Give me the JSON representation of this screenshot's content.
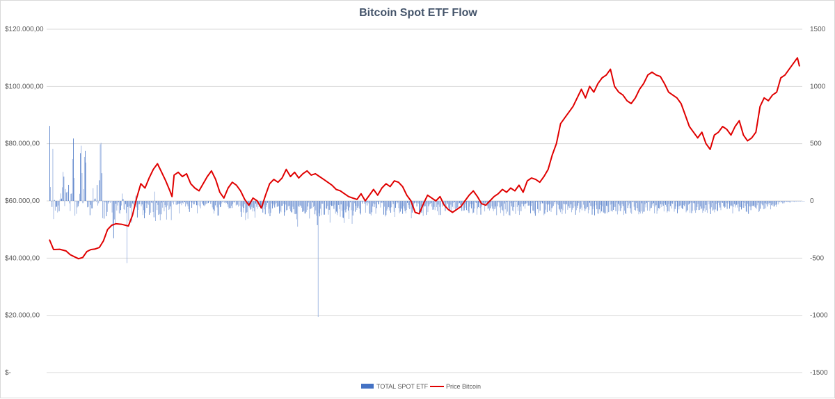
{
  "chart_data": {
    "type": "bar+line",
    "title": "Bitcoin Spot ETF Flow",
    "y_left": {
      "ticks": [
        "$120.000,00",
        "$100.000,00",
        "$80.000,00",
        "$60.000,00",
        "$40.000,00",
        "$20.000,00",
        "$-"
      ],
      "range": [
        0,
        120000
      ]
    },
    "y_right": {
      "ticks": [
        "1500",
        "1000",
        "500",
        "0",
        "-500",
        "-1000",
        "-1500"
      ],
      "range": [
        -1500,
        1500
      ]
    },
    "grid": true,
    "legend_position": "bottom",
    "series": [
      {
        "name": "TOTAL SPOT ETF",
        "kind": "bar",
        "axis": "right",
        "color": "#4472c4",
        "values": [
          655,
          121,
          -1,
          -53,
          455,
          -159,
          8,
          -85,
          -52,
          -51,
          -101,
          -40,
          -90,
          16,
          65,
          20,
          119,
          253,
          212,
          -45,
          104,
          74,
          -1,
          80,
          140,
          -21,
          -88,
          62,
          66,
          365,
          545,
          200,
          -130,
          -1,
          -113,
          -57,
          -47,
          -22,
          62,
          417,
          482,
          243,
          -20,
          103,
          383,
          438,
          335,
          -3,
          -56,
          -52,
          -8,
          -125,
          -35,
          -65,
          -65,
          111,
          -11,
          19,
          20,
          -8,
          139,
          -41,
          -21,
          180,
          495,
          507,
          242,
          -151,
          -3,
          -155,
          -8,
          -14,
          -134,
          -96,
          -25,
          -14,
          -4,
          -18,
          -1,
          -101,
          -222,
          -326,
          -162,
          -201,
          -24,
          -84,
          -40,
          -13,
          -108,
          -112,
          -80,
          -40,
          64,
          18,
          -73,
          -79,
          -28,
          -106,
          -543,
          -54,
          -174,
          -47,
          -61,
          -50,
          -190,
          -22,
          -31,
          -50,
          -53,
          46,
          -57,
          -145,
          -79,
          -30,
          -28,
          -5,
          -47,
          -31,
          -123,
          -81,
          -152,
          -104,
          -20,
          -61,
          -23,
          -34,
          -121,
          -1,
          -103,
          -15,
          -20,
          -97,
          -143,
          81,
          -176,
          -17,
          -80,
          -35,
          -122,
          -114,
          -170,
          -117,
          -15,
          -59,
          -10,
          -91,
          -36,
          -56,
          -163,
          -40,
          -6,
          -79,
          -71,
          -48,
          -168,
          -16,
          -2,
          -31,
          -6,
          -3,
          -33,
          -37,
          -29,
          -24,
          -110,
          -25,
          -21,
          -38,
          -16,
          -24,
          -7,
          -12,
          -49,
          -15,
          -30,
          -47,
          -72,
          -96,
          -4,
          -14,
          -60,
          -15,
          -31,
          -30,
          -5,
          -13,
          -38,
          -109,
          -38,
          -2,
          -48,
          -65,
          -3,
          -28,
          -22,
          -39,
          -46,
          -38,
          -25,
          -3,
          -21,
          -19,
          -4,
          -6,
          -25,
          -8,
          -57,
          -75,
          -111,
          -87,
          -39,
          -12,
          -57,
          -129,
          -128,
          -33,
          -55,
          -51,
          -22,
          -7,
          -5,
          -18,
          -6,
          -21,
          -17,
          -29,
          -53,
          -67,
          -62,
          -63,
          -42,
          -62,
          -28,
          -11,
          -14,
          -4,
          -41,
          -34,
          -33,
          -50,
          -4,
          -41,
          -96,
          -139,
          -50,
          -101,
          -61,
          -29,
          -168,
          -105,
          -97,
          -156,
          -43,
          -57,
          -79,
          -71,
          -53,
          -92,
          -60,
          -92,
          -147,
          -23,
          -52,
          -70,
          -32,
          -54,
          -39,
          -63,
          -52,
          -31,
          -102,
          -41,
          -74,
          -117,
          -36,
          -53,
          -17,
          -110,
          -68,
          -134,
          -104,
          -22,
          -65,
          -24,
          -40,
          -58,
          -30,
          -18,
          -53,
          -43,
          -48,
          -111,
          -88,
          -99,
          -43,
          -41,
          -25,
          -130,
          -99,
          -32,
          -82,
          -78,
          -49,
          -42,
          -70,
          -90,
          -100,
          -100,
          -51,
          -73,
          -114,
          -116,
          -113,
          -161,
          -225,
          -46,
          -54,
          -38,
          -45,
          -60,
          -97,
          -94,
          -87,
          -110,
          -110,
          -96,
          -79,
          -49,
          -15,
          -154,
          -71,
          -67,
          -62,
          -14,
          -53,
          -43,
          -117,
          -83,
          -130,
          -212,
          -1014,
          -108,
          -135,
          -68,
          -125,
          -24,
          -24,
          -120,
          -120,
          -3,
          -65,
          -69,
          -44,
          -120,
          -78,
          -190,
          -35,
          -44,
          -42,
          -44,
          -70,
          -33,
          -112,
          -94,
          -124,
          -105,
          -36,
          -72,
          -138,
          -30,
          -87,
          -145,
          -149,
          -193,
          -81,
          -100,
          -73,
          -47,
          -84,
          -158,
          -57,
          -13,
          -81,
          -200,
          -128,
          -86,
          -20,
          -95,
          -42,
          -79,
          -60,
          -47,
          -68,
          -110,
          -120,
          -6,
          -23,
          -8,
          -4,
          -24,
          -103,
          -15,
          -40,
          -12,
          -21,
          -112,
          -114,
          -127,
          -99,
          -49,
          -22,
          -54,
          -28,
          -112,
          -63,
          -11,
          -28,
          -30,
          -5,
          -58,
          -16,
          -20,
          -12,
          -120,
          -51,
          -136,
          -124,
          -84,
          -69,
          -55,
          -84,
          -59,
          -103,
          -56,
          -8,
          -26,
          -96,
          -140,
          -60,
          -10,
          -28,
          -15,
          -63,
          -108,
          -94,
          -63,
          -73,
          -113,
          -47,
          -66,
          -89,
          -109,
          -79,
          -17,
          -59,
          -37,
          -72,
          -12,
          -152,
          -102,
          -38,
          -48,
          -21,
          -13,
          -18,
          -49,
          -16,
          -23,
          -98,
          -92,
          -96,
          -103,
          -17,
          -131,
          -51,
          -42,
          -46,
          -122,
          -22,
          -98,
          -47,
          -31,
          -25,
          -18,
          -50,
          -78,
          -76,
          -53,
          -81,
          -8,
          -55,
          -90,
          -32,
          -123,
          -53,
          -123,
          -1,
          -52,
          -15,
          -26,
          -16,
          -89,
          -55,
          -14,
          -26,
          -59,
          -73,
          -91,
          -33,
          -100,
          -52,
          -16,
          -68,
          -10,
          -90,
          -63,
          -64,
          -55,
          -23,
          -19,
          -36,
          -62,
          -87,
          -30,
          -86,
          -83,
          -59,
          -28,
          -80,
          -13,
          -90,
          -105,
          -51,
          -26,
          -65,
          -29,
          -110,
          -102,
          -66,
          -12,
          -18,
          -120,
          -66,
          -55,
          -19,
          -61,
          -120,
          -50,
          -20,
          -31,
          -9,
          -92,
          -22,
          -13,
          -44,
          -70,
          -61,
          -84,
          -64,
          -11,
          -48,
          -68,
          -90,
          -73,
          -49,
          -68,
          -125,
          -47,
          -12,
          -14,
          -57,
          -106,
          -47,
          -78,
          -89,
          -131,
          -23,
          -74,
          -112,
          -12,
          -94,
          -1,
          -124,
          -129,
          -20,
          -48,
          -84,
          -91,
          -54,
          -11,
          -114,
          -7,
          -54,
          -86,
          -38,
          -122,
          -51,
          -90,
          -25,
          -26,
          -47,
          -30,
          -67,
          -24,
          -21,
          -15,
          -42,
          -38,
          -44,
          -108,
          -44,
          -18,
          -84,
          -89,
          -109,
          -130,
          -10,
          -8,
          -72,
          -105,
          -9,
          -85,
          -26,
          -12,
          -21,
          -22,
          -125,
          -112,
          -77,
          -26,
          -98,
          -34,
          -29,
          -85,
          -29,
          -97,
          -63,
          -51,
          -43,
          -9,
          -29,
          -9,
          -124,
          -26,
          -37,
          -70,
          -82,
          -99,
          -71,
          -116,
          -82,
          -25,
          -30,
          -112,
          -31,
          -27,
          -78,
          -47,
          -62,
          -60,
          -30,
          -99,
          -77,
          -60,
          -12,
          -47,
          -121,
          -81,
          -61,
          -41,
          -19,
          -101,
          -72,
          -58,
          -82,
          -3,
          -33,
          -64,
          -88,
          -72,
          -64,
          -54,
          -109,
          -78,
          -16,
          -44,
          -46,
          -120,
          -73,
          -48,
          -126,
          -6,
          -38,
          -72,
          -110,
          -114,
          -74,
          -106,
          -35,
          -92,
          -47,
          -100,
          -103,
          -115,
          -107,
          -42,
          -108,
          -47,
          -98,
          -4,
          -33,
          -88,
          -26,
          -93,
          -79,
          -55,
          -53,
          -90,
          -14,
          -118,
          -26,
          -88,
          -40,
          -89,
          -62,
          -27,
          -45,
          -122,
          -85,
          -109,
          -115,
          -10,
          -62,
          -39,
          -22,
          -64,
          -102,
          -113,
          -9,
          -10,
          -51,
          -79,
          -86,
          -18,
          -62,
          -87,
          -117,
          -96,
          -110,
          -92,
          -21,
          -111,
          -95,
          -94,
          -29,
          -57,
          -18,
          -85,
          -10,
          -7,
          -87,
          -66,
          -60,
          -30,
          -45,
          -20,
          -109,
          -50,
          -38,
          -113,
          -85,
          -62,
          -70,
          -61,
          -28,
          -55,
          -30,
          -42,
          -92,
          -20,
          -35,
          -51,
          -102,
          -90,
          -26,
          -93,
          -45,
          -21,
          -66,
          -24,
          -3,
          -94,
          -71,
          -48,
          -8,
          -108,
          -49,
          -74,
          -44,
          -38,
          -60,
          -68,
          -71,
          -37,
          -45,
          -28,
          -100,
          -87,
          -79,
          -33,
          -24,
          -105,
          -16,
          -107,
          -87,
          -19,
          -21,
          -83,
          -104,
          -80,
          -54,
          -25,
          -80,
          -79,
          -48,
          -72,
          -64,
          -104,
          -85,
          -65,
          -95,
          -36,
          -80,
          -105,
          -3,
          -29,
          -70,
          -115,
          -56,
          -17,
          -84,
          -76,
          -100,
          -75,
          -25,
          -83,
          -89,
          -16,
          -38,
          -58,
          -81,
          -14,
          -18,
          -50,
          -44,
          -59,
          -53,
          -19,
          -70,
          -22,
          -5,
          -67,
          -45,
          -36,
          -45,
          -110,
          -53,
          -28,
          -58,
          -40,
          -34,
          -58,
          -25,
          -92,
          -53,
          -55,
          -75,
          -59,
          -10,
          -60,
          -18,
          -44,
          -93,
          -98,
          -24,
          -113,
          -45,
          -50,
          -81,
          -47,
          -43,
          -45,
          -39,
          -52,
          -59,
          -70,
          -38,
          -16,
          -97,
          -89,
          -69,
          -21,
          -30,
          -39,
          -73,
          -70,
          -21,
          -65,
          -30,
          -49,
          -23,
          -34,
          -18,
          -74,
          -37,
          -41,
          -28,
          -50,
          -47,
          -35,
          -52,
          -32,
          -5,
          -31,
          -12,
          -2,
          -15,
          -7,
          -22,
          -1,
          -21,
          -12,
          -3,
          -7,
          -8,
          -11,
          -4,
          -13,
          -15,
          -2,
          -3,
          -6,
          -2,
          -9,
          -4,
          -1,
          -7,
          -2,
          -3,
          -5,
          -1,
          -2,
          -1,
          -1,
          -1,
          0,
          0
        ]
      },
      {
        "name": "Price Bitcoin",
        "kind": "line",
        "axis": "left",
        "color": "#e00000",
        "values": []
      }
    ]
  },
  "legend": {
    "items": [
      "TOTAL SPOT ETF",
      "Price Bitcoin"
    ]
  }
}
